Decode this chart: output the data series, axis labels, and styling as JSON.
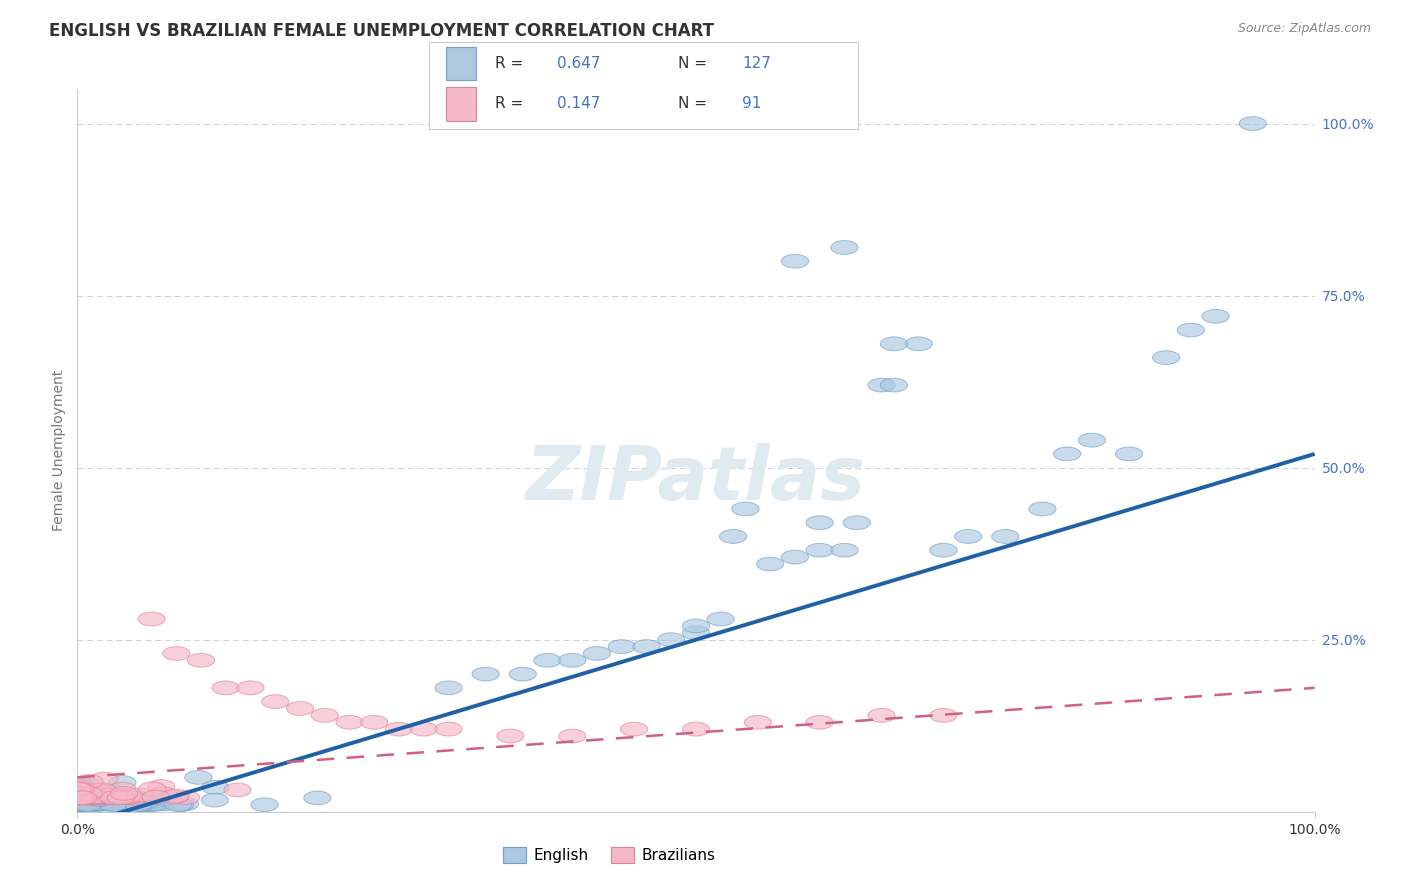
{
  "title": "ENGLISH VS BRAZILIAN FEMALE UNEMPLOYMENT CORRELATION CHART",
  "source_text": "Source: ZipAtlas.com",
  "watermark": "ZIPatlas",
  "ylabel": "Female Unemployment",
  "x_tick_labels": [
    "0.0%",
    "100.0%"
  ],
  "y_tick_labels": [
    "25.0%",
    "50.0%",
    "75.0%",
    "100.0%"
  ],
  "y_tick_values": [
    0.25,
    0.5,
    0.75,
    1.0
  ],
  "english_color": "#adc8e0",
  "english_edge_color": "#6fa0c8",
  "english_line_color": "#2060a8",
  "brazilians_color": "#f5b8c8",
  "brazilians_edge_color": "#e08098",
  "brazilians_line_color": "#d06080",
  "text_color": "#333333",
  "value_color": "#4472c4",
  "source_color": "#888888",
  "grid_color": "#d0d0d0",
  "background_color": "#ffffff",
  "title_fontsize": 12,
  "source_fontsize": 9,
  "tick_fontsize": 10,
  "ylabel_fontsize": 10,
  "legend_fontsize": 11,
  "xlim": [
    0.0,
    1.0
  ],
  "ylim": [
    0.0,
    1.05
  ],
  "eng_line_x0": 0.0,
  "eng_line_y0": -0.02,
  "eng_line_x1": 1.0,
  "eng_line_y1": 0.52,
  "bra_line_x0": 0.0,
  "bra_line_y0": 0.05,
  "bra_line_x1": 1.0,
  "bra_line_y1": 0.18
}
